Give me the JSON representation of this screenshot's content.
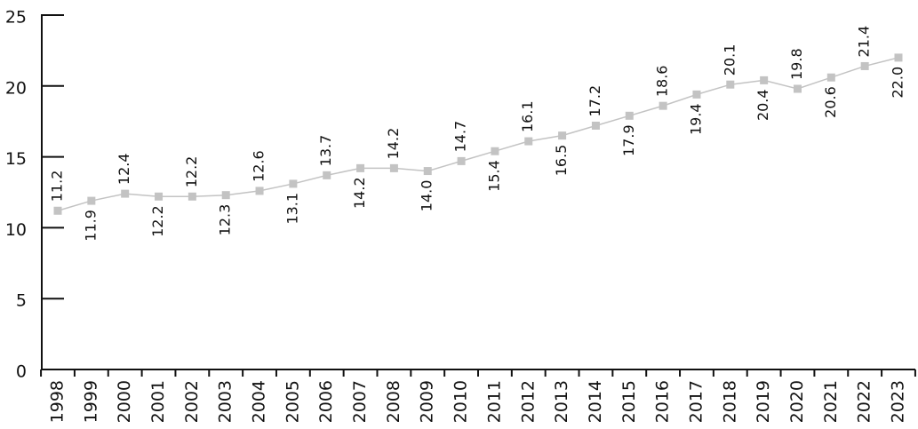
{
  "chart_data": {
    "type": "line",
    "categories": [
      "1998",
      "1999",
      "2000",
      "2001",
      "2002",
      "2003",
      "2004",
      "2005",
      "2006",
      "2007",
      "2008",
      "2009",
      "2010",
      "2011",
      "2012",
      "2013",
      "2014",
      "2015",
      "2016",
      "2017",
      "2018",
      "2019",
      "2020",
      "2021",
      "2022",
      "2023"
    ],
    "values": [
      11.2,
      11.9,
      12.4,
      12.2,
      12.2,
      12.3,
      12.6,
      13.1,
      13.7,
      14.2,
      14.2,
      14.0,
      14.7,
      15.4,
      16.1,
      16.5,
      17.2,
      17.9,
      18.6,
      19.4,
      20.1,
      20.4,
      19.8,
      20.6,
      21.4,
      22.0
    ],
    "value_labels": [
      "11.2",
      "11.9",
      "12.4",
      "12.2",
      "12.2",
      "12.3",
      "12.6",
      "13.1",
      "13.7",
      "14.2",
      "14.2",
      "14.0",
      "14.7",
      "15.4",
      "16.1",
      "16.5",
      "17.2",
      "17.9",
      "18.6",
      "19.4",
      "20.1",
      "20.4",
      "19.8",
      "20.6",
      "21.4",
      "22.0"
    ],
    "color": "#c3c3c3",
    "ylim": [
      0,
      25
    ],
    "yticks": [
      0,
      5,
      10,
      15,
      20,
      25
    ]
  }
}
